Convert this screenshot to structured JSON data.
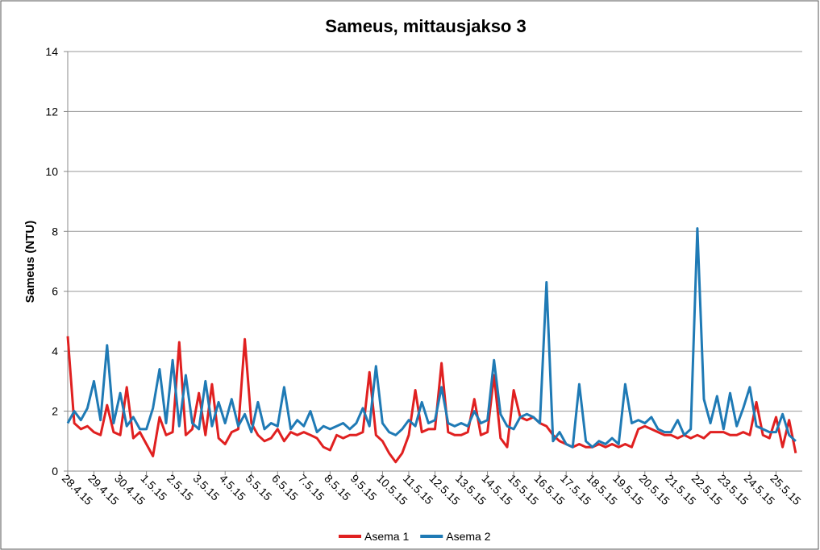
{
  "chart_data": {
    "type": "line",
    "title": "Sameus, mittausjakso 3",
    "y_label": "Sameus (NTU)",
    "x": [
      "28.4.15",
      "28.4.15",
      "28.4.15",
      "28.4.15",
      "29.4.15",
      "29.4.15",
      "29.4.15",
      "29.4.15",
      "30.4.15",
      "30.4.15",
      "30.4.15",
      "30.4.15",
      "1.5.15",
      "1.5.15",
      "1.5.15",
      "1.5.15",
      "2.5.15",
      "2.5.15",
      "2.5.15",
      "2.5.15",
      "3.5.15",
      "3.5.15",
      "3.5.15",
      "3.5.15",
      "4.5.15",
      "4.5.15",
      "4.5.15",
      "4.5.15",
      "5.5.15",
      "5.5.15",
      "5.5.15",
      "5.5.15",
      "6.5.15",
      "6.5.15",
      "6.5.15",
      "6.5.15",
      "7.5.15",
      "7.5.15",
      "7.5.15",
      "7.5.15",
      "8.5.15",
      "8.5.15",
      "8.5.15",
      "8.5.15",
      "9.5.15",
      "9.5.15",
      "9.5.15",
      "9.5.15",
      "10.5.15",
      "10.5.15",
      "10.5.15",
      "10.5.15",
      "11.5.15",
      "11.5.15",
      "11.5.15",
      "11.5.15",
      "12.5.15",
      "12.5.15",
      "12.5.15",
      "12.5.15",
      "13.5.15",
      "13.5.15",
      "13.5.15",
      "13.5.15",
      "14.5.15",
      "14.5.15",
      "14.5.15",
      "14.5.15",
      "15.5.15",
      "15.5.15",
      "15.5.15",
      "15.5.15",
      "16.5.15",
      "16.5.15",
      "16.5.15",
      "16.5.15",
      "17.5.15",
      "17.5.15",
      "17.5.15",
      "17.5.15",
      "18.5.15",
      "18.5.15",
      "18.5.15",
      "18.5.15",
      "19.5.15",
      "19.5.15",
      "19.5.15",
      "19.5.15",
      "20.5.15",
      "20.5.15",
      "20.5.15",
      "20.5.15",
      "21.5.15",
      "21.5.15",
      "21.5.15",
      "21.5.15",
      "22.5.15",
      "22.5.15",
      "22.5.15",
      "22.5.15",
      "23.5.15",
      "23.5.15",
      "23.5.15",
      "23.5.15",
      "24.5.15",
      "24.5.15",
      "24.5.15",
      "24.5.15",
      "25.5.15",
      "25.5.15",
      "25.5.15",
      "25.5.15"
    ],
    "xticks": [
      "28.4.15",
      "29.4.15",
      "30.4.15",
      "1.5.15",
      "2.5.15",
      "3.5.15",
      "4.5.15",
      "5.5.15",
      "6.5.15",
      "7.5.15",
      "8.5.15",
      "9.5.15",
      "10.5.15",
      "11.5.15",
      "12.5.15",
      "13.5.15",
      "14.5.15",
      "15.5.15",
      "16.5.15",
      "17.5.15",
      "18.5.15",
      "19.5.15",
      "20.5.15",
      "21.5.15",
      "22.5.15",
      "23.5.15",
      "24.5.15",
      "25.5.15"
    ],
    "series": [
      {
        "name": "Asema 1",
        "color": "#e02020",
        "values": [
          4.5,
          1.6,
          1.4,
          1.5,
          1.3,
          1.2,
          2.2,
          1.3,
          1.2,
          2.8,
          1.1,
          1.3,
          0.9,
          0.5,
          1.8,
          1.2,
          1.3,
          4.3,
          1.2,
          1.4,
          2.6,
          1.2,
          2.9,
          1.1,
          0.9,
          1.3,
          1.4,
          4.4,
          1.6,
          1.2,
          1.0,
          1.1,
          1.4,
          1.0,
          1.3,
          1.2,
          1.3,
          1.2,
          1.1,
          0.8,
          0.7,
          1.2,
          1.1,
          1.2,
          1.2,
          1.3,
          3.3,
          1.2,
          1.0,
          0.6,
          0.3,
          0.6,
          1.2,
          2.7,
          1.3,
          1.4,
          1.4,
          3.6,
          1.3,
          1.2,
          1.2,
          1.3,
          2.4,
          1.2,
          1.3,
          3.2,
          1.1,
          0.8,
          2.7,
          1.8,
          1.7,
          1.8,
          1.6,
          1.5,
          1.2,
          1.0,
          0.9,
          0.8,
          0.9,
          0.8,
          0.8,
          0.9,
          0.8,
          0.9,
          0.8,
          0.9,
          0.8,
          1.4,
          1.5,
          1.4,
          1.3,
          1.2,
          1.2,
          1.1,
          1.2,
          1.1,
          1.2,
          1.1,
          1.3,
          1.3,
          1.3,
          1.2,
          1.2,
          1.3,
          1.2,
          2.3,
          1.2,
          1.1,
          1.8,
          0.8,
          1.7,
          0.6
        ]
      },
      {
        "name": "Asema 2",
        "color": "#1f7ab5",
        "values": [
          1.6,
          2.0,
          1.7,
          2.1,
          3.0,
          1.7,
          4.2,
          1.6,
          2.6,
          1.5,
          1.8,
          1.4,
          1.4,
          2.1,
          3.4,
          1.6,
          3.7,
          1.5,
          3.2,
          1.6,
          1.4,
          3.0,
          1.5,
          2.3,
          1.6,
          2.4,
          1.5,
          1.9,
          1.3,
          2.3,
          1.4,
          1.6,
          1.5,
          2.8,
          1.4,
          1.7,
          1.5,
          2.0,
          1.3,
          1.5,
          1.4,
          1.5,
          1.6,
          1.4,
          1.6,
          2.1,
          1.5,
          3.5,
          1.6,
          1.3,
          1.2,
          1.4,
          1.7,
          1.5,
          2.3,
          1.6,
          1.7,
          2.8,
          1.6,
          1.5,
          1.6,
          1.5,
          2.0,
          1.6,
          1.7,
          3.7,
          1.9,
          1.5,
          1.4,
          1.8,
          1.9,
          1.8,
          1.6,
          6.3,
          1.0,
          1.3,
          0.9,
          0.8,
          2.9,
          1.0,
          0.8,
          1.0,
          0.9,
          1.1,
          0.9,
          2.9,
          1.6,
          1.7,
          1.6,
          1.8,
          1.4,
          1.3,
          1.3,
          1.7,
          1.2,
          1.4,
          8.1,
          2.4,
          1.6,
          2.5,
          1.4,
          2.6,
          1.5,
          2.1,
          2.8,
          1.5,
          1.4,
          1.3,
          1.3,
          1.9,
          1.2,
          1.0
        ]
      }
    ],
    "ylim": [
      0,
      14
    ],
    "yticks": [
      0,
      2,
      4,
      6,
      8,
      10,
      12,
      14
    ],
    "grid": true,
    "legend": "bottom"
  }
}
